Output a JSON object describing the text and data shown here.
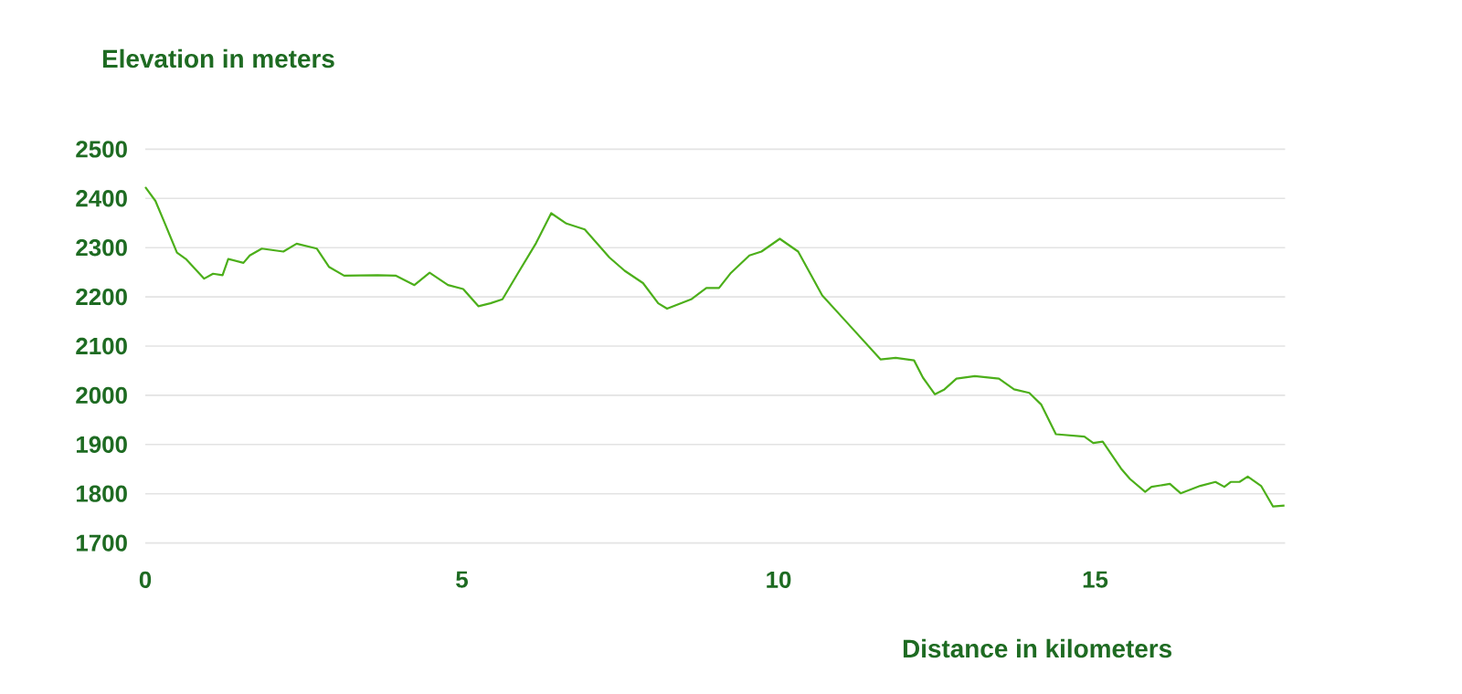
{
  "chart_data": {
    "type": "line",
    "title": "Elevation in meters",
    "xlabel": "Distance in kilometers",
    "xlim": [
      0,
      18
    ],
    "ylim": [
      1700,
      2500
    ],
    "xticks": [
      0,
      5,
      10,
      15
    ],
    "yticks": [
      1700,
      1800,
      1900,
      2000,
      2100,
      2200,
      2300,
      2400,
      2500
    ],
    "grid": "y",
    "legend": false,
    "marker": "none",
    "line_style": "solid",
    "series": [
      {
        "color": "#4caf1a",
        "x": [
          0,
          0.16,
          0.3,
          0.5,
          0.64,
          0.93,
          1.07,
          1.22,
          1.31,
          1.55,
          1.65,
          1.84,
          2.18,
          2.39,
          2.71,
          2.9,
          3.14,
          3.67,
          3.96,
          4.25,
          4.49,
          4.78,
          5.02,
          5.26,
          5.45,
          5.64,
          5.88,
          6.17,
          6.41,
          6.65,
          6.94,
          7.33,
          7.57,
          7.86,
          8.1,
          8.24,
          8.62,
          8.86,
          9.06,
          9.25,
          9.54,
          9.73,
          10.02,
          10.31,
          10.69,
          11.08,
          11.61,
          11.85,
          12.14,
          12.28,
          12.47,
          12.62,
          12.81,
          13.1,
          13.48,
          13.72,
          13.96,
          14.15,
          14.38,
          14.83,
          14.97,
          15.12,
          15.41,
          15.55,
          15.79,
          15.89,
          16.18,
          16.35,
          16.66,
          16.9,
          17.04,
          17.14,
          17.28,
          17.41,
          17.62,
          17.81,
          17.99
        ],
        "values": [
          2423,
          2395,
          2352,
          2290,
          2277,
          2237,
          2247,
          2244,
          2277,
          2269,
          2284,
          2298,
          2292,
          2308,
          2298,
          2261,
          2243,
          2244,
          2243,
          2224,
          2249,
          2224,
          2216,
          2181,
          2187,
          2195,
          2247,
          2309,
          2370,
          2349,
          2337,
          2280,
          2253,
          2228,
          2187,
          2176,
          2195,
          2218,
          2218,
          2249,
          2284,
          2292,
          2318,
          2292,
          2203,
          2148,
          2073,
          2076,
          2071,
          2036,
          2002,
          2012,
          2034,
          2039,
          2034,
          2012,
          2005,
          1981,
          1921,
          1916,
          1903,
          1906,
          1851,
          1830,
          1804,
          1814,
          1820,
          1801,
          1816,
          1824,
          1814,
          1824,
          1824,
          1835,
          1816,
          1774,
          1776
        ]
      }
    ]
  }
}
